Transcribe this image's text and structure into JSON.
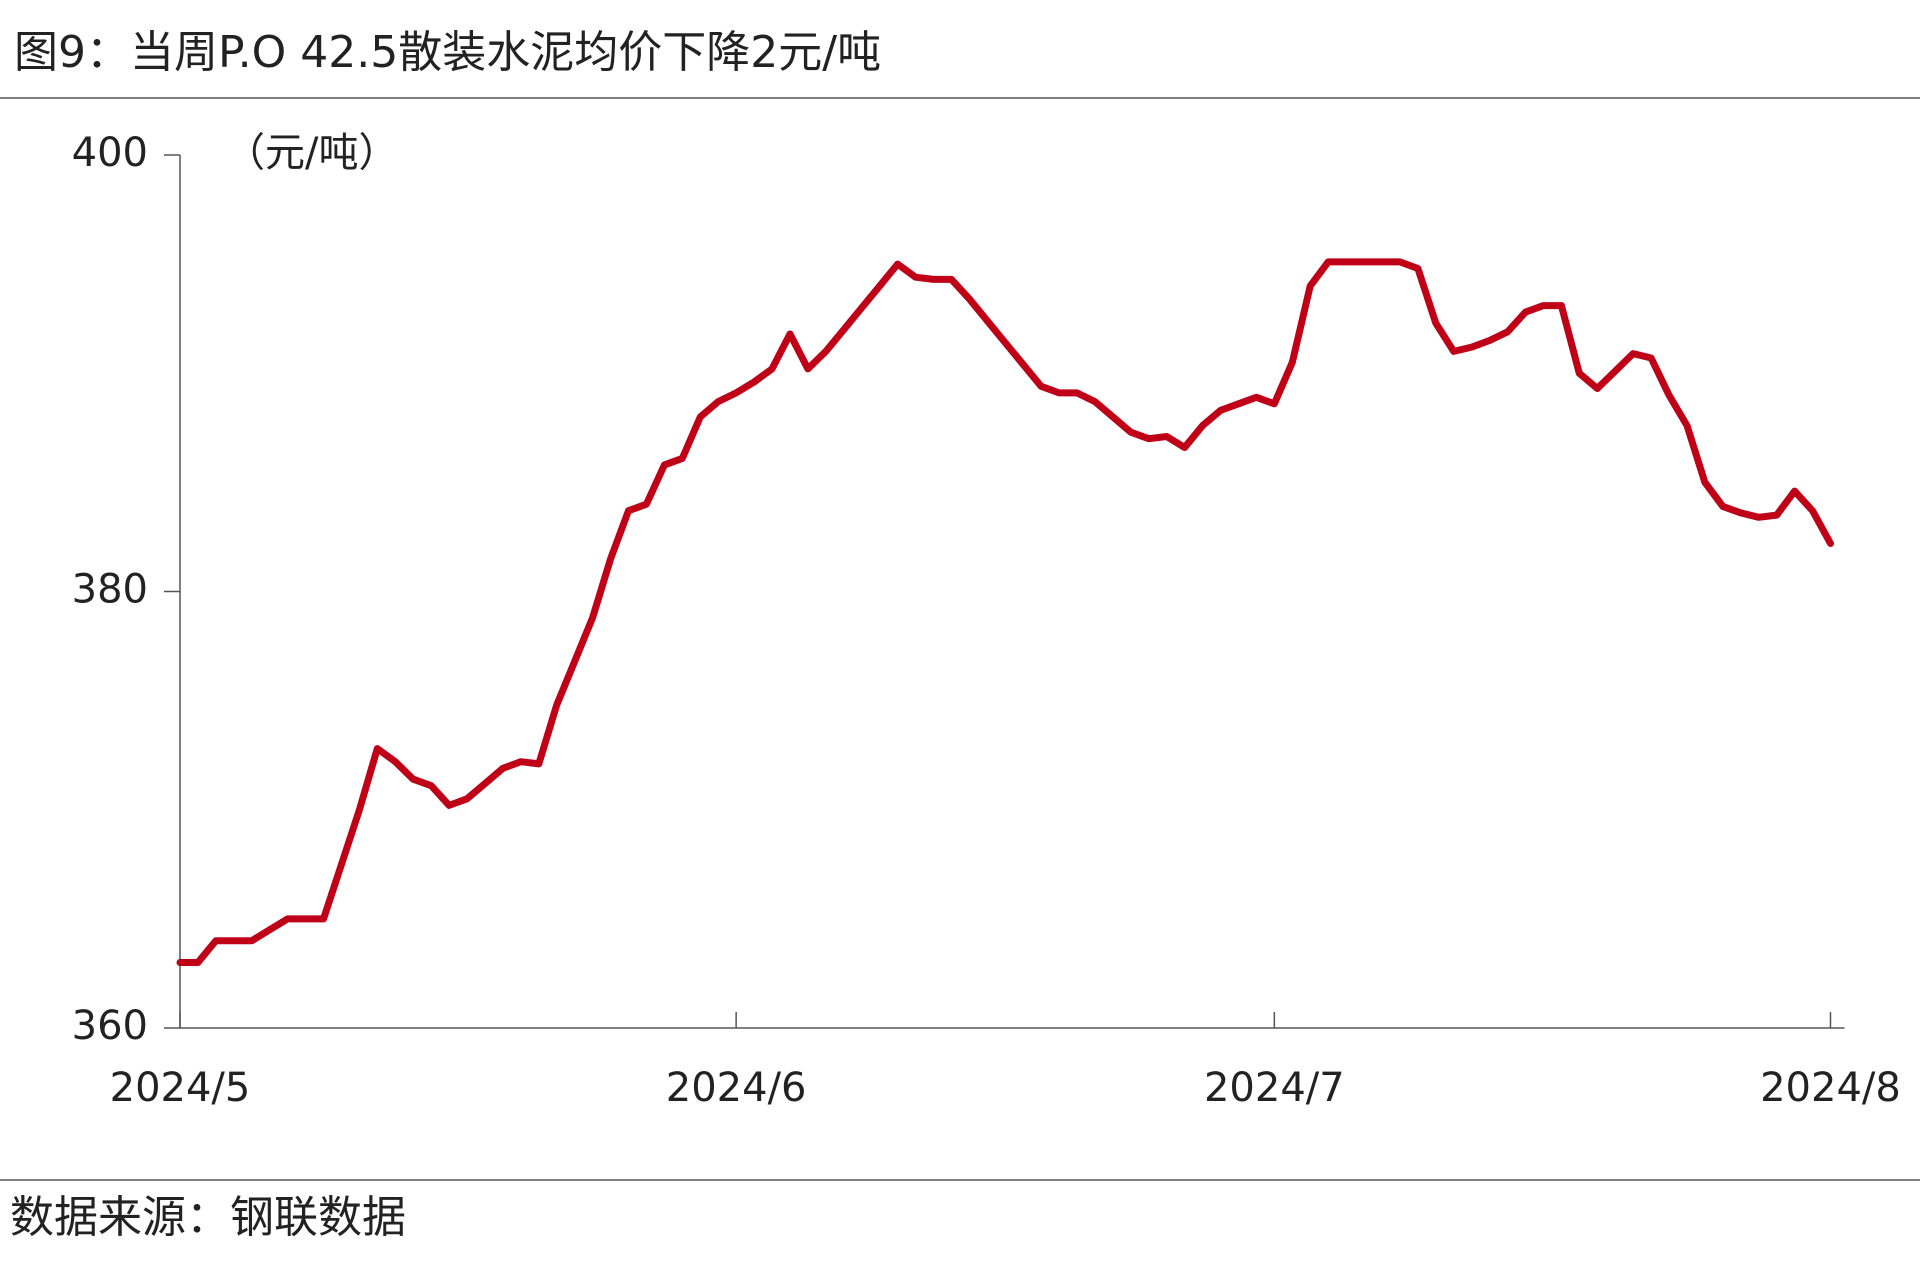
{
  "chart_data": {
    "type": "line",
    "title": "图9：当周P.O 42.5散装水泥均价下降2元/吨",
    "y_label": "（元/吨）",
    "source": "数据来源：钢联数据",
    "color": "#c00016",
    "grid": false,
    "ylim": [
      360,
      400
    ],
    "yticks": [
      360,
      380,
      400
    ],
    "categories": [
      "2024/5",
      null,
      null,
      null,
      null,
      null,
      null,
      null,
      null,
      null,
      null,
      null,
      null,
      null,
      null,
      null,
      null,
      null,
      null,
      null,
      null,
      null,
      null,
      null,
      null,
      null,
      null,
      null,
      null,
      null,
      null,
      "2024/6",
      null,
      null,
      null,
      null,
      null,
      null,
      null,
      null,
      null,
      null,
      null,
      null,
      null,
      null,
      null,
      null,
      null,
      null,
      null,
      null,
      null,
      null,
      null,
      null,
      null,
      null,
      null,
      null,
      null,
      "2024/7",
      null,
      null,
      null,
      null,
      null,
      null,
      null,
      null,
      null,
      null,
      null,
      null,
      null,
      null,
      null,
      null,
      null,
      null,
      null,
      null,
      null,
      null,
      null,
      null,
      null,
      null,
      null,
      null,
      null,
      null,
      "2024/8"
    ],
    "values": [
      363,
      363,
      364,
      364,
      364,
      364.5,
      365,
      365,
      365,
      367.5,
      370,
      372.8,
      372.2,
      371.4,
      371.1,
      370.2,
      370.5,
      371.2,
      371.9,
      372.2,
      372.1,
      374.8,
      376.8,
      378.8,
      381.5,
      383.7,
      384,
      385.8,
      386.1,
      388,
      388.7,
      389.1,
      389.6,
      390.2,
      391.8,
      390.2,
      391,
      392,
      393,
      394,
      395,
      394.4,
      394.3,
      394.3,
      393.4,
      392.4,
      391.4,
      390.4,
      389.4,
      389.1,
      389.1,
      388.7,
      388,
      387.3,
      387,
      387.1,
      386.6,
      387.6,
      388.3,
      388.6,
      388.9,
      388.6,
      390.5,
      394,
      395.1,
      395.1,
      395.1,
      395.1,
      395.1,
      394.8,
      392.3,
      391,
      391.2,
      391.5,
      391.9,
      392.8,
      393.1,
      393.1,
      390,
      389.3,
      390.1,
      390.9,
      390.7,
      389,
      387.6,
      385,
      383.9,
      383.6,
      383.4,
      383.5,
      384.6,
      383.7,
      382.2
    ]
  }
}
